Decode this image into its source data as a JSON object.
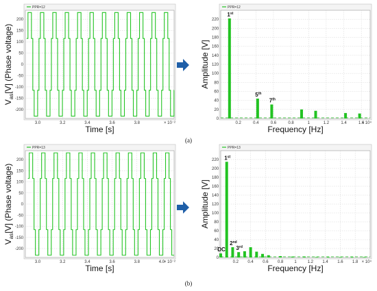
{
  "captions": [
    "(a)",
    "(b)"
  ],
  "colors": {
    "wave": "#22c322",
    "arrow": "#1f5fa8",
    "grid": "#c8c8c8"
  },
  "arrow_icons": [
    "right-arrow-icon",
    "right-arrow-icon"
  ],
  "chart_data": [
    {
      "type": "line",
      "panel": "a-time",
      "legend": "PPR=12",
      "xlabel": "Time [s]",
      "ylabel_main": "V",
      "ylabel_sub": "as",
      "ylabel_rest": "[V] (Phase voltage)",
      "x_exponent": "× 10⁻²",
      "xlim": [
        2.9,
        4.1
      ],
      "ylim": [
        -240,
        240
      ],
      "xticks": [
        "3.0",
        "3.2",
        "3.4",
        "3.6",
        "3.8"
      ],
      "xtick_values": [
        3.0,
        3.2,
        3.4,
        3.6,
        3.8
      ],
      "yticks": [
        "200",
        "150",
        "100",
        "50",
        "0",
        "-50",
        "-100",
        "-150",
        "-200"
      ],
      "ytick_values": [
        200,
        150,
        100,
        50,
        0,
        -50,
        -100,
        -150,
        -200
      ],
      "levels": [
        230,
        115,
        0,
        -115,
        -230
      ],
      "period": 0.1,
      "start": 2.91,
      "cycles": 12
    },
    {
      "type": "bar",
      "panel": "a-spectrum",
      "legend": "PPR=12",
      "xlabel": "Frequency [Hz]",
      "ylabel": "Amplitude [V]",
      "x_exponent": "× 10⁴",
      "xlim": [
        0,
        1.7
      ],
      "ylim": [
        0,
        240
      ],
      "xticks": [
        "0.2",
        "0.4",
        "0.6",
        "0.8",
        "1",
        "1.2",
        "1.4",
        "1.6"
      ],
      "xtick_values": [
        0.2,
        0.4,
        0.6,
        0.8,
        1.0,
        1.2,
        1.4,
        1.6
      ],
      "yticks": [
        "220",
        "200",
        "180",
        "160",
        "140",
        "120",
        "100",
        "80",
        "60",
        "40",
        "20",
        "0"
      ],
      "ytick_values": [
        220,
        200,
        180,
        160,
        140,
        120,
        100,
        80,
        60,
        40,
        20,
        0
      ],
      "bars": [
        {
          "x": 0.1,
          "y": 222
        },
        {
          "x": 0.42,
          "y": 44
        },
        {
          "x": 0.58,
          "y": 31
        },
        {
          "x": 0.92,
          "y": 20
        },
        {
          "x": 1.08,
          "y": 17
        },
        {
          "x": 1.42,
          "y": 12
        },
        {
          "x": 1.58,
          "y": 11
        }
      ],
      "labels": [
        {
          "text": "1",
          "sup": "st",
          "x": 0.1,
          "y": 222
        },
        {
          "text": "5",
          "sup": "th",
          "x": 0.42,
          "y": 44
        },
        {
          "text": "7",
          "sup": "th",
          "x": 0.58,
          "y": 31
        }
      ]
    },
    {
      "type": "line",
      "panel": "b-time",
      "legend": "PPR=13",
      "xlabel": "Time [s]",
      "ylabel_main": "V",
      "ylabel_sub": "as",
      "ylabel_rest": "[V] (Phase voltage)",
      "x_exponent": "× 10⁻²",
      "xlim": [
        2.9,
        4.1
      ],
      "ylim": [
        -240,
        240
      ],
      "xticks": [
        "3.0",
        "3.2",
        "3.4",
        "3.6",
        "3.8",
        "4.0"
      ],
      "xtick_values": [
        3.0,
        3.2,
        3.4,
        3.6,
        3.8,
        4.0
      ],
      "yticks": [
        "200",
        "150",
        "100",
        "50",
        "0",
        "-50",
        "-100",
        "-150",
        "-200"
      ],
      "ytick_values": [
        200,
        150,
        100,
        50,
        0,
        -50,
        -100,
        -150,
        -200
      ],
      "levels": [
        230,
        115,
        0,
        -115,
        -230
      ],
      "period": 0.1,
      "start": 2.92,
      "cycles": 12
    },
    {
      "type": "bar",
      "panel": "b-spectrum",
      "legend": "PPR=13",
      "xlabel": "Frequency [Hz]",
      "ylabel": "Amplitude [V]",
      "x_exponent": "× 10⁴",
      "xlim": [
        0,
        2.0
      ],
      "ylim": [
        0,
        240
      ],
      "xticks": [
        "0.2",
        "0.4",
        "0.6",
        "0.8",
        "1",
        "1.2",
        "1.4",
        "1.6",
        "1.8"
      ],
      "xtick_values": [
        0.2,
        0.4,
        0.6,
        0.8,
        1.0,
        1.2,
        1.4,
        1.6,
        1.8
      ],
      "yticks": [
        "220",
        "200",
        "180",
        "160",
        "140",
        "120",
        "100",
        "80",
        "60",
        "40",
        "20",
        "0"
      ],
      "ytick_values": [
        220,
        200,
        180,
        160,
        140,
        120,
        100,
        80,
        60,
        40,
        20,
        0
      ],
      "bars": [
        {
          "x": 0.0,
          "y": 9
        },
        {
          "x": 0.08,
          "y": 215
        },
        {
          "x": 0.16,
          "y": 23
        },
        {
          "x": 0.24,
          "y": 12
        },
        {
          "x": 0.32,
          "y": 14
        },
        {
          "x": 0.4,
          "y": 23
        },
        {
          "x": 0.48,
          "y": 13
        },
        {
          "x": 0.56,
          "y": 8
        },
        {
          "x": 0.64,
          "y": 5
        },
        {
          "x": 0.8,
          "y": 3
        },
        {
          "x": 0.96,
          "y": 2
        },
        {
          "x": 1.12,
          "y": 2
        },
        {
          "x": 1.28,
          "y": 1
        },
        {
          "x": 1.44,
          "y": 1
        },
        {
          "x": 1.6,
          "y": 1
        },
        {
          "x": 1.76,
          "y": 1
        },
        {
          "x": 1.92,
          "y": 1
        }
      ],
      "labels": [
        {
          "text": "DC",
          "sup": "",
          "x": 0.0,
          "y": 9
        },
        {
          "text": "1",
          "sup": "st",
          "x": 0.08,
          "y": 215
        },
        {
          "text": "2",
          "sup": "nd",
          "x": 0.16,
          "y": 23
        },
        {
          "text": "3",
          "sup": "rd",
          "x": 0.24,
          "y": 12
        }
      ]
    }
  ]
}
